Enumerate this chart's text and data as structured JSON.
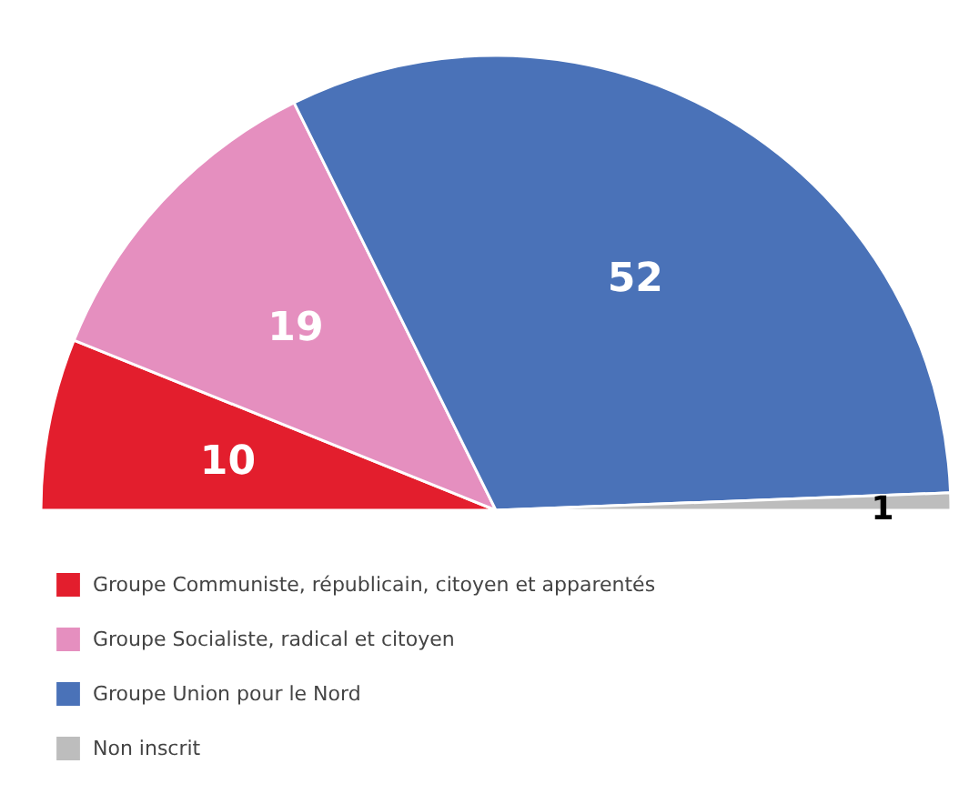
{
  "chart_data": {
    "type": "pie",
    "categories": [
      "Groupe Communiste, républicain, citoyen et apparentés",
      "Groupe Socialiste, radical et citoyen",
      "Groupe Union pour le Nord",
      "Non inscrit"
    ],
    "values": [
      10,
      19,
      52,
      1
    ],
    "colors": [
      "#e31e2d",
      "#e58fbf",
      "#4a72b8",
      "#bdbdbd"
    ],
    "data_labels": true,
    "legend": "bottom"
  }
}
